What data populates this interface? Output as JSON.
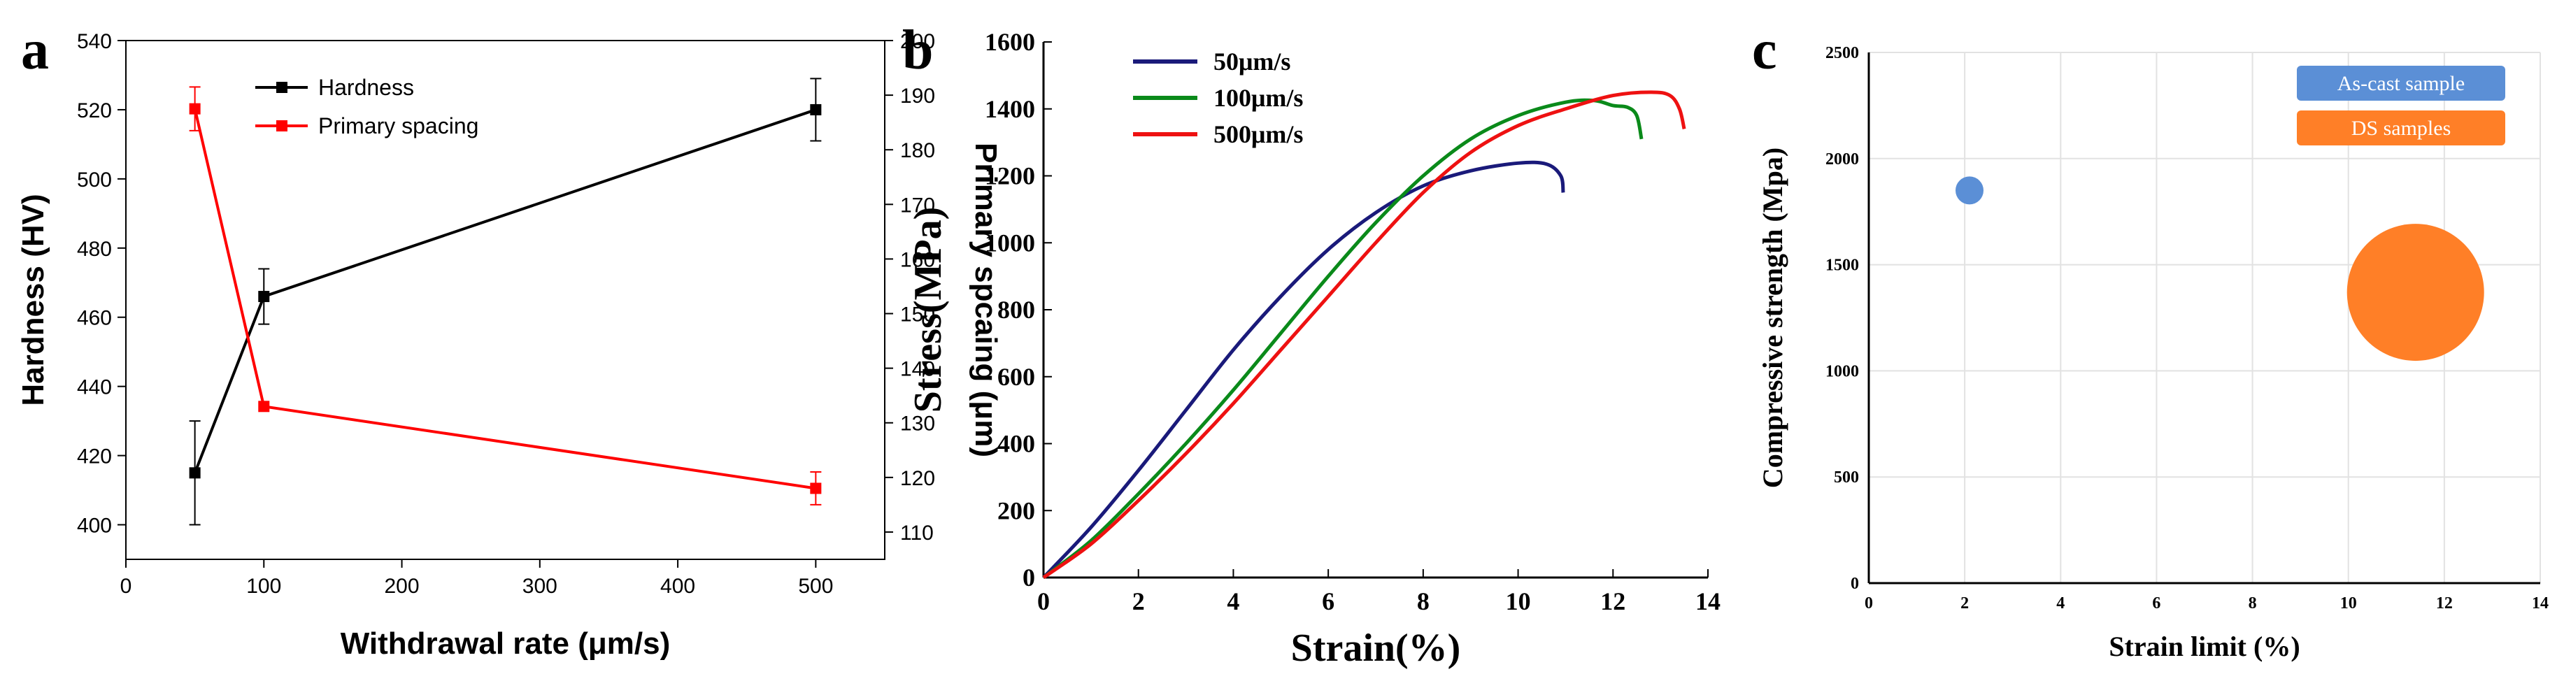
{
  "chart_data": [
    {
      "panel_label": "a",
      "type": "line",
      "xlabel": "Withdrawal rate (μm/s)",
      "ylabel": "Hardness (HV)",
      "y2label": "Primary spcaing (μm)",
      "xlim": [
        0,
        550
      ],
      "ylim": [
        390,
        540
      ],
      "y2lim": [
        105,
        200
      ],
      "xticks": [
        0,
        100,
        200,
        300,
        400,
        500
      ],
      "yticks": [
        400,
        420,
        440,
        460,
        480,
        500,
        520,
        540
      ],
      "y2ticks": [
        110,
        120,
        130,
        140,
        150,
        160,
        170,
        180,
        190,
        200
      ],
      "series": [
        {
          "name": "Hardness",
          "axis": "left",
          "color": "#000000",
          "x": [
            50,
            100,
            500
          ],
          "values": [
            415,
            466,
            520
          ],
          "errors": [
            15,
            8,
            9
          ]
        },
        {
          "name": "Primary spacing",
          "axis": "right",
          "color": "#ff0000",
          "x": [
            50,
            100,
            500
          ],
          "values": [
            187.5,
            133,
            118
          ],
          "errors": [
            4,
            0,
            3
          ]
        }
      ]
    },
    {
      "panel_label": "b",
      "type": "line",
      "xlabel": "Strain(%)",
      "ylabel": "Stress(MPa)",
      "xlim": [
        0,
        14
      ],
      "ylim": [
        0,
        1600
      ],
      "xticks": [
        0,
        2,
        4,
        6,
        8,
        10,
        12,
        14
      ],
      "yticks": [
        0,
        200,
        400,
        600,
        800,
        1000,
        1200,
        1400,
        1600
      ],
      "series": [
        {
          "name": "50μm/s",
          "color": "#1a1a7a",
          "x": [
            0,
            1,
            2,
            3,
            4,
            5,
            6,
            7,
            8,
            9,
            10,
            10.6,
            10.9,
            10.95
          ],
          "values": [
            0,
            150,
            320,
            500,
            680,
            840,
            980,
            1090,
            1170,
            1215,
            1238,
            1235,
            1200,
            1150
          ]
        },
        {
          "name": "100μm/s",
          "color": "#0a8a1a",
          "x": [
            0,
            1,
            2,
            3,
            4,
            5,
            6,
            7,
            8,
            9,
            10,
            11,
            11.6,
            12.0,
            12.3,
            12.5,
            12.6
          ],
          "values": [
            0,
            110,
            250,
            400,
            560,
            730,
            900,
            1060,
            1200,
            1310,
            1380,
            1420,
            1425,
            1410,
            1405,
            1380,
            1310
          ]
        },
        {
          "name": "500μm/s",
          "color": "#ee1111",
          "x": [
            0,
            1,
            2,
            3,
            4,
            5,
            6,
            7,
            8,
            9,
            10,
            11,
            12,
            12.8,
            13.2,
            13.4,
            13.5
          ],
          "values": [
            0,
            100,
            230,
            370,
            520,
            680,
            840,
            1000,
            1150,
            1270,
            1350,
            1400,
            1440,
            1450,
            1440,
            1400,
            1340
          ]
        }
      ]
    },
    {
      "panel_label": "c",
      "type": "scatter",
      "xlabel": "Strain limit (%)",
      "ylabel": "Compressive strength (Mpa)",
      "xlim": [
        0,
        14
      ],
      "ylim": [
        0,
        2500
      ],
      "xticks": [
        0,
        2,
        4,
        6,
        8,
        10,
        12,
        14
      ],
      "yticks": [
        0,
        500,
        1000,
        1500,
        2000,
        2500
      ],
      "grid": true,
      "series": [
        {
          "name": "As-cast sample",
          "color": "#5b8fd6",
          "x": [
            2.1
          ],
          "values": [
            1850
          ],
          "size": "small"
        },
        {
          "name": "DS samples",
          "color": "#ff7f27",
          "x": [
            11.4
          ],
          "values": [
            1370
          ],
          "size": "large"
        }
      ]
    }
  ]
}
